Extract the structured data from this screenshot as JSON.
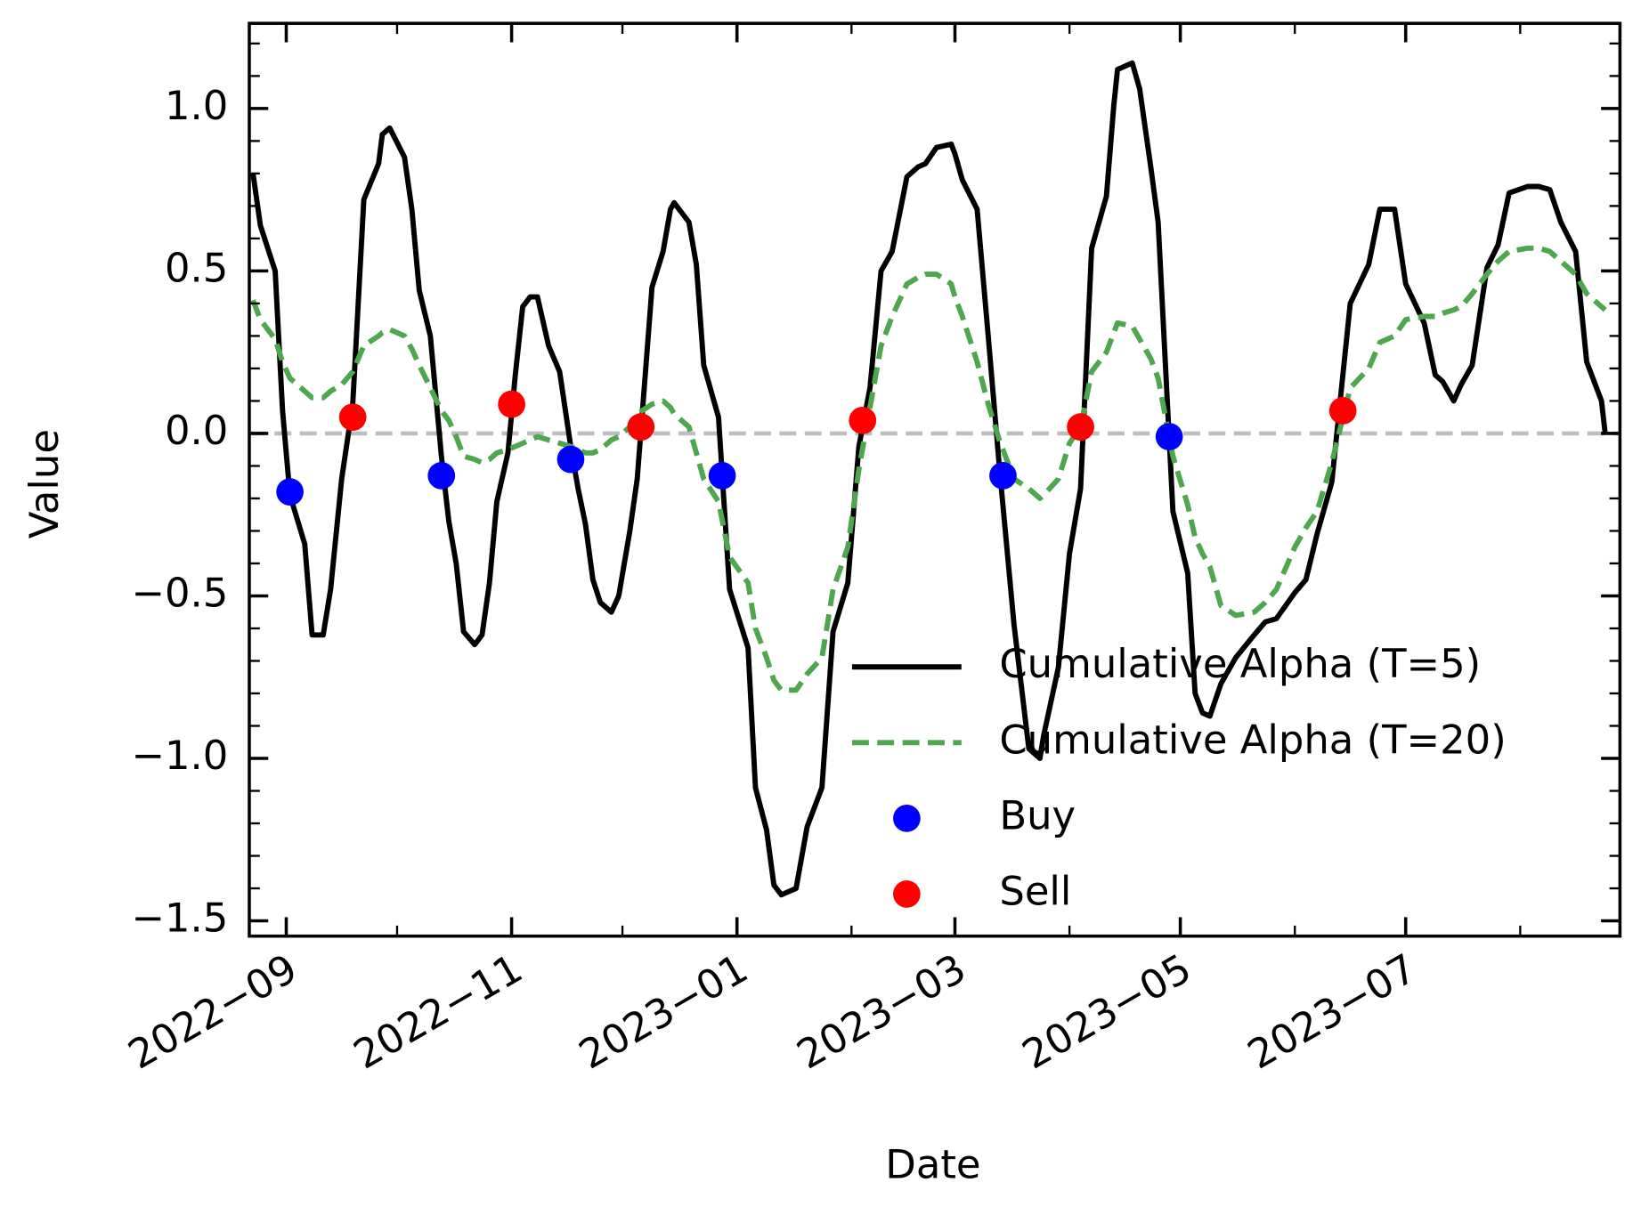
{
  "chart_data": {
    "type": "line",
    "xlabel": "Date",
    "ylabel": "Value",
    "xlim": [
      "2022-08-22",
      "2023-08-28"
    ],
    "ylim": [
      -1.547,
      1.262
    ],
    "xticks": [
      {
        "value": "2022-09",
        "label": "2022−09"
      },
      {
        "value": "2022-11",
        "label": "2022−11"
      },
      {
        "value": "2023-01",
        "label": "2023−01"
      },
      {
        "value": "2023-03",
        "label": "2023−03"
      },
      {
        "value": "2023-05",
        "label": "2023−05"
      },
      {
        "value": "2023-07",
        "label": "2023−07"
      }
    ],
    "xminorticks": [
      "2022-10",
      "2022-12",
      "2023-02",
      "2023-04",
      "2023-06",
      "2023-08"
    ],
    "yticks": [
      {
        "value": -1.5,
        "label": "−1.5"
      },
      {
        "value": -1.0,
        "label": "−1.0"
      },
      {
        "value": -0.5,
        "label": "−0.5"
      },
      {
        "value": 0.0,
        "label": "0.0"
      },
      {
        "value": 0.5,
        "label": "0.5"
      },
      {
        "value": 1.0,
        "label": "1.0"
      }
    ],
    "yminorticks": [
      -1.4,
      -1.3,
      -1.2,
      -1.1,
      -0.9,
      -0.8,
      -0.7,
      -0.6,
      -0.4,
      -0.3,
      -0.2,
      -0.1,
      0.1,
      0.2,
      0.3,
      0.4,
      0.6,
      0.7,
      0.8,
      0.9,
      1.1,
      1.2
    ],
    "hline": {
      "value": 0,
      "color": "#bdbdbd"
    },
    "legend": "lower right",
    "x": [
      "2022-08-23",
      "2022-08-25",
      "2022-08-29",
      "2022-08-31",
      "2022-09-02",
      "2022-09-06",
      "2022-09-08",
      "2022-09-11",
      "2022-09-13",
      "2022-09-16",
      "2022-09-19",
      "2022-09-22",
      "2022-09-26",
      "2022-09-27",
      "2022-09-29",
      "2022-10-03",
      "2022-10-05",
      "2022-10-07",
      "2022-10-10",
      "2022-10-13",
      "2022-10-15",
      "2022-10-17",
      "2022-10-19",
      "2022-10-22",
      "2022-10-24",
      "2022-10-26",
      "2022-10-28",
      "2022-10-31",
      "2022-11-02",
      "2022-11-04",
      "2022-11-06",
      "2022-11-08",
      "2022-11-11",
      "2022-11-14",
      "2022-11-17",
      "2022-11-19",
      "2022-11-21",
      "2022-11-23",
      "2022-11-25",
      "2022-11-28",
      "2022-11-30",
      "2022-12-03",
      "2022-12-05",
      "2022-12-09",
      "2022-12-12",
      "2022-12-14",
      "2022-12-15",
      "2022-12-19",
      "2022-12-21",
      "2022-12-23",
      "2022-12-27",
      "2022-12-30",
      "2023-01-04",
      "2023-01-06",
      "2023-01-09",
      "2023-01-11",
      "2023-01-13",
      "2023-01-17",
      "2023-01-20",
      "2023-01-24",
      "2023-01-27",
      "2023-01-31",
      "2023-02-03",
      "2023-02-06",
      "2023-02-09",
      "2023-02-12",
      "2023-02-16",
      "2023-02-19",
      "2023-02-21",
      "2023-02-24",
      "2023-02-28",
      "2023-03-01",
      "2023-03-03",
      "2023-03-07",
      "2023-03-10",
      "2023-03-13",
      "2023-03-17",
      "2023-03-21",
      "2023-03-24",
      "2023-03-25",
      "2023-03-29",
      "2023-04-01",
      "2023-04-04",
      "2023-04-07",
      "2023-04-11",
      "2023-04-13",
      "2023-04-14",
      "2023-04-18",
      "2023-04-20",
      "2023-04-23",
      "2023-04-25",
      "2023-04-29",
      "2023-05-03",
      "2023-05-05",
      "2023-05-07",
      "2023-05-09",
      "2023-05-12",
      "2023-05-16",
      "2023-05-21",
      "2023-05-24",
      "2023-05-27",
      "2023-06-01",
      "2023-06-04",
      "2023-06-07",
      "2023-06-11",
      "2023-06-16",
      "2023-06-21",
      "2023-06-24",
      "2023-06-28",
      "2023-07-01",
      "2023-07-06",
      "2023-07-09",
      "2023-07-11",
      "2023-07-14",
      "2023-07-16",
      "2023-07-19",
      "2023-07-23",
      "2023-07-26",
      "2023-07-29",
      "2023-08-03",
      "2023-08-06",
      "2023-08-09",
      "2023-08-12",
      "2023-08-16",
      "2023-08-19",
      "2023-08-23",
      "2023-08-24"
    ],
    "series": [
      {
        "name": "Cumulative Alpha (T=5)",
        "color": "#000000",
        "linestyle": "solid",
        "values": [
          0.8,
          0.64,
          0.5,
          0.07,
          -0.19,
          -0.34,
          -0.62,
          -0.62,
          -0.48,
          -0.14,
          0.09,
          0.72,
          0.83,
          0.92,
          0.94,
          0.85,
          0.69,
          0.44,
          0.3,
          -0.07,
          -0.27,
          -0.4,
          -0.61,
          -0.65,
          -0.62,
          -0.46,
          -0.21,
          -0.06,
          0.18,
          0.39,
          0.42,
          0.42,
          0.27,
          0.19,
          -0.04,
          -0.17,
          -0.28,
          -0.45,
          -0.52,
          -0.55,
          -0.5,
          -0.3,
          -0.14,
          0.45,
          0.56,
          0.69,
          0.71,
          0.65,
          0.52,
          0.21,
          0.05,
          -0.48,
          -0.66,
          -1.09,
          -1.22,
          -1.39,
          -1.42,
          -1.4,
          -1.21,
          -1.09,
          -0.61,
          -0.46,
          -0.04,
          0.14,
          0.5,
          0.56,
          0.79,
          0.82,
          0.83,
          0.88,
          0.89,
          0.86,
          0.78,
          0.69,
          0.3,
          -0.1,
          -0.59,
          -0.97,
          -1.0,
          -0.93,
          -0.72,
          -0.37,
          -0.17,
          0.57,
          0.73,
          1.01,
          1.12,
          1.14,
          1.06,
          0.82,
          0.65,
          -0.24,
          -0.43,
          -0.8,
          -0.86,
          -0.87,
          -0.77,
          -0.69,
          -0.62,
          -0.58,
          -0.57,
          -0.49,
          -0.45,
          -0.31,
          -0.15,
          0.4,
          0.52,
          0.69,
          0.69,
          0.46,
          0.34,
          0.18,
          0.16,
          0.1,
          0.15,
          0.21,
          0.51,
          0.58,
          0.74,
          0.76,
          0.76,
          0.75,
          0.65,
          0.56,
          0.22,
          0.1,
          0.0
        ]
      },
      {
        "name": "Cumulative Alpha (T=20)",
        "color": "#4ea64e",
        "linestyle": "dashed",
        "values": [
          0.41,
          0.35,
          0.29,
          0.22,
          0.17,
          0.13,
          0.11,
          0.11,
          0.13,
          0.15,
          0.19,
          0.27,
          0.3,
          0.31,
          0.32,
          0.3,
          0.26,
          0.21,
          0.14,
          0.07,
          0.04,
          -0.01,
          -0.07,
          -0.08,
          -0.09,
          -0.08,
          -0.06,
          -0.05,
          -0.04,
          -0.03,
          -0.02,
          -0.01,
          -0.02,
          -0.03,
          -0.04,
          -0.05,
          -0.06,
          -0.06,
          -0.05,
          -0.02,
          -0.01,
          0.02,
          0.06,
          0.09,
          0.1,
          0.08,
          0.06,
          0.02,
          -0.06,
          -0.14,
          -0.21,
          -0.38,
          -0.46,
          -0.6,
          -0.69,
          -0.76,
          -0.79,
          -0.79,
          -0.74,
          -0.69,
          -0.48,
          -0.35,
          -0.11,
          0.08,
          0.27,
          0.36,
          0.46,
          0.48,
          0.49,
          0.49,
          0.46,
          0.42,
          0.36,
          0.22,
          0.09,
          -0.02,
          -0.14,
          -0.17,
          -0.2,
          -0.19,
          -0.14,
          -0.03,
          0.02,
          0.19,
          0.25,
          0.31,
          0.34,
          0.33,
          0.29,
          0.23,
          0.17,
          -0.07,
          -0.22,
          -0.32,
          -0.37,
          -0.41,
          -0.53,
          -0.56,
          -0.55,
          -0.52,
          -0.48,
          -0.35,
          -0.29,
          -0.24,
          -0.09,
          0.14,
          0.2,
          0.28,
          0.3,
          0.35,
          0.36,
          0.36,
          0.37,
          0.38,
          0.39,
          0.43,
          0.49,
          0.53,
          0.56,
          0.57,
          0.57,
          0.56,
          0.53,
          0.49,
          0.43,
          0.39,
          0.38
        ]
      },
      {
        "name": "Buy",
        "color": "#0000ff",
        "marker": "o",
        "x": [
          "2022-09-02",
          "2022-10-13",
          "2022-11-17",
          "2022-12-28",
          "2023-03-14",
          "2023-04-28"
        ],
        "values": [
          -0.18,
          -0.13,
          -0.08,
          -0.13,
          -0.13,
          -0.01
        ]
      },
      {
        "name": "Sell",
        "color": "#ff0000",
        "marker": "o",
        "x": [
          "2022-09-19",
          "2022-11-01",
          "2022-12-06",
          "2023-02-04",
          "2023-04-04",
          "2023-06-14"
        ],
        "values": [
          0.05,
          0.09,
          0.02,
          0.04,
          0.02,
          0.07
        ]
      }
    ]
  }
}
